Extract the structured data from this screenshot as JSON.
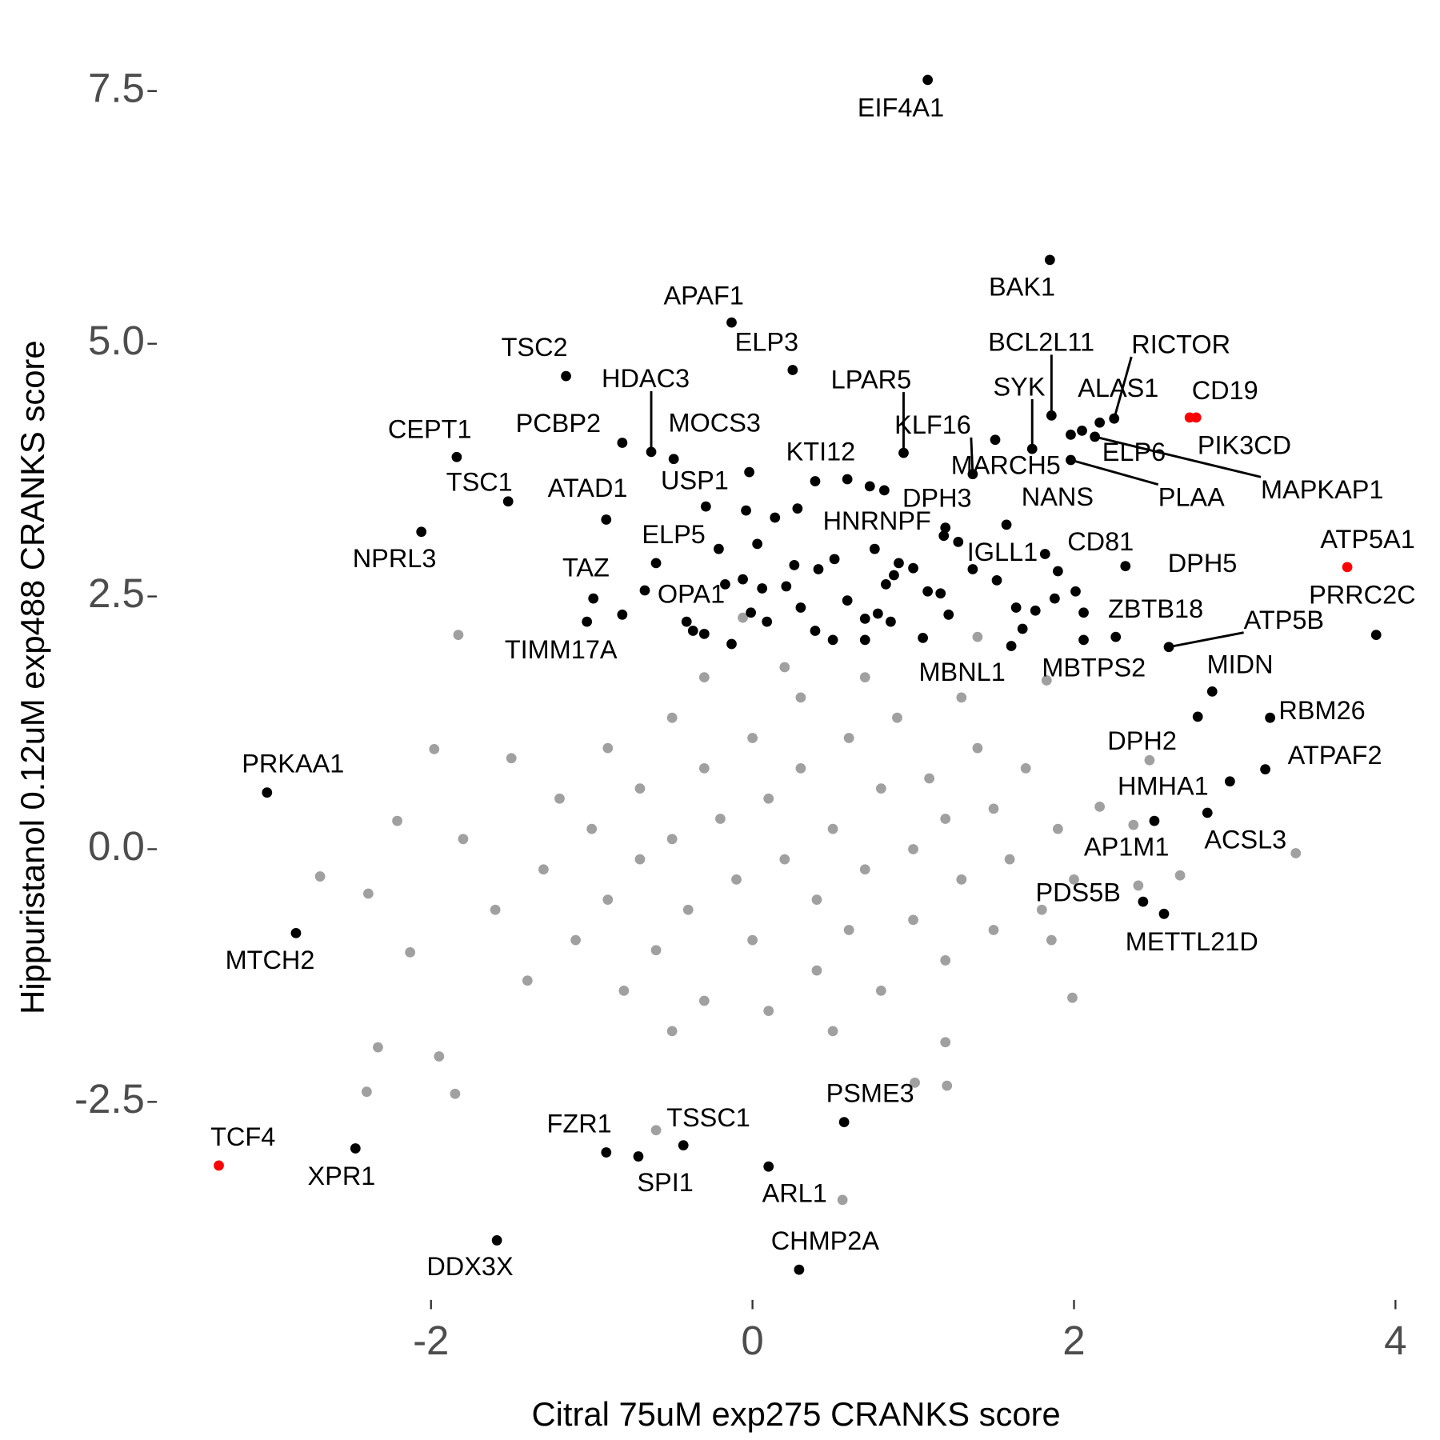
{
  "chart_data": {
    "type": "scatter",
    "xlabel": "Citral 75uM exp275 CRANKS score",
    "ylabel": "Hippuristanol 0.12uM exp488 CRANKS score",
    "xlim": [
      -3.7,
      4.15
    ],
    "ylim": [
      -4.45,
      7.85
    ],
    "xticks": [
      -2,
      0,
      2,
      4
    ],
    "yticks": [
      {
        "value": -2.5,
        "label": "-2.5"
      },
      {
        "value": 0,
        "label": "0.0"
      },
      {
        "value": 2.5,
        "label": "2.5"
      },
      {
        "value": 5,
        "label": "5.0"
      },
      {
        "value": 7.5,
        "label": "7.5"
      }
    ],
    "grid": false,
    "series": [
      {
        "color": "#a0a0a0",
        "x": [
          -1.83,
          -2.69,
          -2.39,
          -2.33,
          -2.4,
          -1.85,
          3.38,
          2.66,
          1.99,
          0.56,
          1.01,
          2.4,
          2.37,
          2.16,
          2.47,
          -2.21,
          -2.13,
          -0.6,
          1.21,
          1.86,
          1.2,
          -1.95,
          -1.98,
          1.83,
          1.4,
          -0.06,
          -1.3,
          -1.2,
          -1.1,
          -1.0,
          -0.9,
          -0.9,
          -0.8,
          -0.7,
          -0.7,
          -0.6,
          -0.5,
          -0.5,
          -0.4,
          -0.3,
          -0.3,
          -0.2,
          -0.1,
          0,
          0,
          0.1,
          0.1,
          0.2,
          0.3,
          0.3,
          0.4,
          0.4,
          0.5,
          0.6,
          0.6,
          0.7,
          0.8,
          0.8,
          0.9,
          1.0,
          1.0,
          1.1,
          1.2,
          1.2,
          1.3,
          1.4,
          1.5,
          1.5,
          1.6,
          1.7,
          1.8,
          -1.5,
          -1.6,
          -1.4,
          0.2,
          -0.3,
          0.7,
          1.9,
          2.0,
          -1.8,
          0.5,
          -0.5,
          1.3
        ],
        "y": [
          2.12,
          -0.27,
          -0.44,
          -1.96,
          -2.4,
          -2.42,
          -0.04,
          -0.26,
          -1.47,
          -3.47,
          -2.31,
          -0.36,
          0.24,
          0.42,
          0.88,
          0.28,
          -1.02,
          -2.78,
          -2.34,
          -0.9,
          -1.91,
          -2.05,
          0.99,
          1.67,
          2.1,
          2.29,
          -0.2,
          0.5,
          -0.9,
          0.2,
          -0.5,
          1.0,
          -1.4,
          0.6,
          -0.1,
          -1.0,
          1.3,
          0.1,
          -0.6,
          0.8,
          -1.5,
          0.3,
          -0.3,
          1.1,
          -0.9,
          0.5,
          -1.6,
          -0.1,
          1.5,
          0.8,
          -0.5,
          -1.2,
          0.2,
          1.1,
          -0.8,
          -0.2,
          0.6,
          -1.4,
          1.3,
          0.0,
          -0.7,
          0.7,
          -1.1,
          0.3,
          -0.3,
          1.0,
          -0.8,
          0.4,
          -0.1,
          0.8,
          -0.6,
          0.9,
          -0.6,
          -1.3,
          1.8,
          1.7,
          1.7,
          0.2,
          -0.3,
          0.1,
          -1.8,
          -1.8,
          1.5
        ]
      },
      {
        "color": "#000000",
        "x": [
          1.09,
          1.85,
          -0.13,
          0.25,
          -1.16,
          -0.63,
          -0.81,
          -0.49,
          -1.84,
          -1.52,
          -2.06,
          -0.91,
          -0.29,
          0.39,
          0.94,
          1.37,
          1.74,
          1.86,
          2.25,
          2.16,
          2.05,
          1.98,
          2.13,
          1.98,
          1.58,
          1.2,
          1.19,
          1.82,
          1.9,
          2.32,
          3.88,
          2.26,
          2.59,
          2.86,
          3.22,
          2.77,
          3.19,
          2.97,
          2.83,
          2.5,
          2.43,
          2.56,
          2.06,
          1.61,
          -0.6,
          -0.99,
          -0.41,
          -1.03,
          -3.02,
          -2.84,
          -2.47,
          -1.59,
          -0.91,
          -0.71,
          -0.43,
          0.1,
          0.57,
          0.29,
          -0.04,
          0.14,
          0.28,
          0.59,
          0.73,
          0.82,
          -0.21,
          0.03,
          0.26,
          0.41,
          0.51,
          0.76,
          0.91,
          0.88,
          0.83,
          1.0,
          1.28,
          1.17,
          1.22,
          1.37,
          1.52,
          1.64,
          1.76,
          1.88,
          2.01,
          2.06,
          1.68,
          1.51,
          -0.06,
          0.06,
          0.21,
          0.3,
          -0.01,
          0.09,
          0.39,
          0.5,
          0.7,
          0.78,
          0.86,
          1.06,
          0.7,
          0.59,
          1.09,
          -0.67,
          -0.81,
          -0.17,
          -0.13,
          -0.37,
          -0.3,
          -0.02
        ],
        "y": [
          7.61,
          5.83,
          5.21,
          4.74,
          4.68,
          3.93,
          4.02,
          3.86,
          3.88,
          3.44,
          3.14,
          3.26,
          3.39,
          3.64,
          3.92,
          3.71,
          3.96,
          4.29,
          4.26,
          4.22,
          4.14,
          4.1,
          4.08,
          3.85,
          3.21,
          3.18,
          3.1,
          2.92,
          2.75,
          2.8,
          2.12,
          2.1,
          2.0,
          1.56,
          1.3,
          1.31,
          0.79,
          0.67,
          0.36,
          0.28,
          -0.52,
          -0.64,
          2.07,
          2.01,
          2.83,
          2.48,
          2.25,
          2.25,
          0.56,
          -0.83,
          -2.96,
          -3.87,
          -3.0,
          -3.04,
          -2.93,
          -3.14,
          -2.7,
          -4.16,
          3.35,
          3.28,
          3.37,
          3.66,
          3.59,
          3.55,
          2.97,
          3.02,
          2.81,
          2.77,
          2.87,
          2.97,
          2.83,
          2.71,
          2.62,
          2.78,
          3.04,
          2.53,
          2.32,
          2.77,
          2.66,
          2.39,
          2.36,
          2.48,
          2.55,
          2.34,
          2.18,
          4.05,
          2.67,
          2.58,
          2.6,
          2.39,
          2.34,
          2.25,
          2.16,
          2.07,
          2.28,
          2.33,
          2.25,
          2.09,
          2.07,
          2.46,
          2.55,
          2.56,
          2.32,
          2.62,
          2.03,
          2.16,
          2.13,
          3.73
        ],
        "labels": [
          "EIF4A1",
          "BAK1",
          "APAF1",
          "ELP3",
          "TSC2",
          "HDAC3",
          "PCBP2",
          "MOCS3",
          "CEPT1",
          "TSC1",
          "NPRL3",
          "ATAD1",
          "USP1",
          "KTI12",
          "LPAR5",
          "KLF16",
          "SYK",
          "BCL2L11",
          "RICTOR",
          "ALAS1",
          "ELP6",
          "MARCH5",
          "MAPKAP1",
          "PLAA",
          "NANS",
          "DPH3",
          "HNRNPF",
          "IGLL1",
          "CD81",
          "DPH5",
          "PRRC2C",
          "ZBTB18",
          "ATP5B",
          "MIDN",
          "RBM26",
          "DPH2",
          "ATPAF2",
          "HMHA1",
          "ACSL3",
          "AP1M1",
          "PDS5B",
          "METTL21D",
          "MBTPS2",
          "MBNL1",
          "ELP5",
          "TAZ",
          "OPA1",
          "TIMM17A",
          "PRKAA1",
          "MTCH2",
          "XPR1",
          "DDX3X",
          "FZR1",
          "SPI1",
          "TSSC1",
          "ARL1",
          "PSME3",
          "CHMP2A",
          null,
          null,
          null,
          null,
          null,
          null,
          null,
          null,
          null,
          null,
          null,
          null,
          null,
          null,
          null,
          null,
          null,
          null,
          null,
          null,
          null,
          null,
          null,
          null,
          null,
          null,
          null,
          null,
          null,
          null,
          null,
          null,
          null,
          null,
          null,
          null,
          null,
          null,
          null,
          null,
          null,
          null,
          null,
          null,
          null,
          null,
          null,
          null,
          null,
          null,
          null
        ]
      },
      {
        "color": "#ff0000",
        "x": [
          -3.32,
          2.72,
          2.76,
          3.7
        ],
        "y": [
          -3.13,
          4.27,
          4.27,
          2.79
        ],
        "labels": [
          "TCF4",
          "CD19",
          "PIK3CD",
          "ATP5A1"
        ]
      }
    ]
  }
}
